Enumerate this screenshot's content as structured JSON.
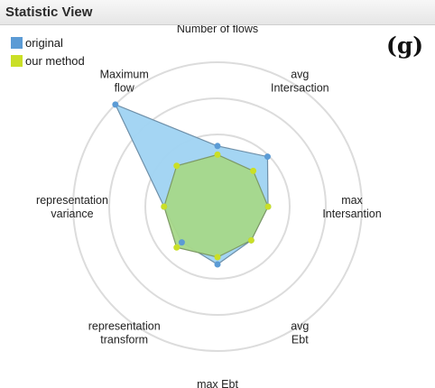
{
  "panel": {
    "title": "Statistic View"
  },
  "badge": "(g)",
  "chart_data": {
    "type": "radar",
    "axes": [
      "Number of flows",
      "avg Intersaction",
      "max Intersantion",
      "avg Ebt",
      "max Ebt",
      "representation transform",
      "representation variance",
      "Maximum flow"
    ],
    "r_range": [
      0,
      1
    ],
    "rings": 4,
    "legend_position": "top-left",
    "series": [
      {
        "name": "original",
        "color": "#5b9bd5",
        "fill": "#9fd3f2",
        "values": [
          0.42,
          0.49,
          0.35,
          0.33,
          0.4,
          0.35,
          0.37,
          1.0
        ]
      },
      {
        "name": "our method",
        "color": "#cadf26",
        "fill": "#a6d889",
        "values": [
          0.36,
          0.35,
          0.35,
          0.33,
          0.35,
          0.4,
          0.37,
          0.4
        ]
      }
    ]
  }
}
